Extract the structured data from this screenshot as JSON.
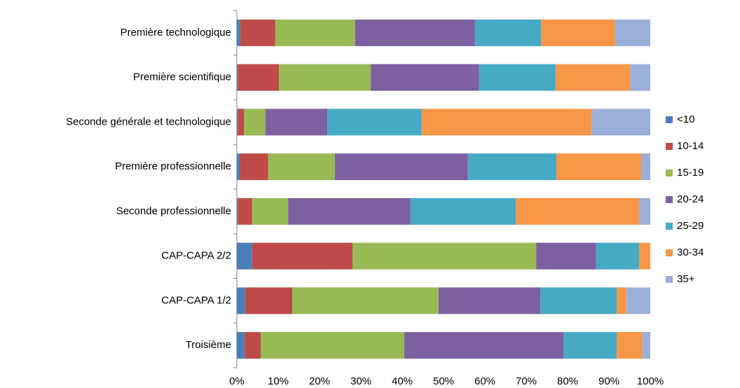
{
  "chart_data": {
    "type": "stacked-bar-horizontal",
    "categories": [
      "Première technologique",
      "Première scientifique",
      "Seconde générale et technologique",
      "Première professionnelle",
      "Seconde professionnelle",
      "CAP-CAPA 2/2",
      "CAP-CAPA 1/2",
      "Troisième"
    ],
    "series": [
      {
        "name": "<10",
        "color": "#4a7ebb",
        "values": [
          0.8,
          0.2,
          0.2,
          0.7,
          0.2,
          3.7,
          2.0,
          1.9
        ]
      },
      {
        "name": "10-14",
        "color": "#be4b48",
        "values": [
          8.5,
          10.0,
          1.5,
          6.9,
          3.5,
          24.3,
          11.4,
          3.9
        ]
      },
      {
        "name": "15-19",
        "color": "#98b954",
        "values": [
          19.3,
          22.2,
          5.2,
          16.1,
          8.7,
          44.4,
          35.4,
          34.7
        ]
      },
      {
        "name": "20-24",
        "color": "#7d60a0",
        "values": [
          29.0,
          26.2,
          15.0,
          32.2,
          29.6,
          14.5,
          24.6,
          38.5
        ]
      },
      {
        "name": "25-29",
        "color": "#46aac5",
        "values": [
          16.0,
          18.5,
          22.8,
          21.4,
          25.5,
          10.4,
          18.5,
          12.9
        ]
      },
      {
        "name": "30-34",
        "color": "#f79646",
        "values": [
          17.9,
          18.0,
          41.1,
          20.5,
          29.8,
          2.7,
          2.3,
          6.2
        ]
      },
      {
        "name": "35+",
        "color": "#9bb0d8",
        "values": [
          8.5,
          4.9,
          14.2,
          2.2,
          2.7,
          0,
          5.8,
          1.9
        ]
      }
    ],
    "xlim": [
      0,
      100
    ],
    "xticks": [
      {
        "value": 0,
        "label": "0%"
      },
      {
        "value": 10,
        "label": "10%"
      },
      {
        "value": 20,
        "label": "20%"
      },
      {
        "value": 30,
        "label": "30%"
      },
      {
        "value": 40,
        "label": "40%"
      },
      {
        "value": 50,
        "label": "50%"
      },
      {
        "value": 60,
        "label": "60%"
      },
      {
        "value": 70,
        "label": "70%"
      },
      {
        "value": 80,
        "label": "80%"
      },
      {
        "value": 90,
        "label": "90%"
      },
      {
        "value": 100,
        "label": "100%"
      }
    ],
    "legend": "right"
  }
}
